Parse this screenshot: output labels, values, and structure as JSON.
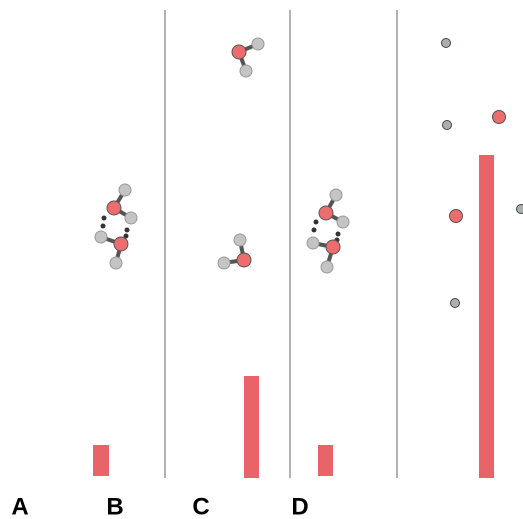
{
  "panels": {
    "labels": [
      "A",
      "B",
      "C",
      "D"
    ]
  }
}
